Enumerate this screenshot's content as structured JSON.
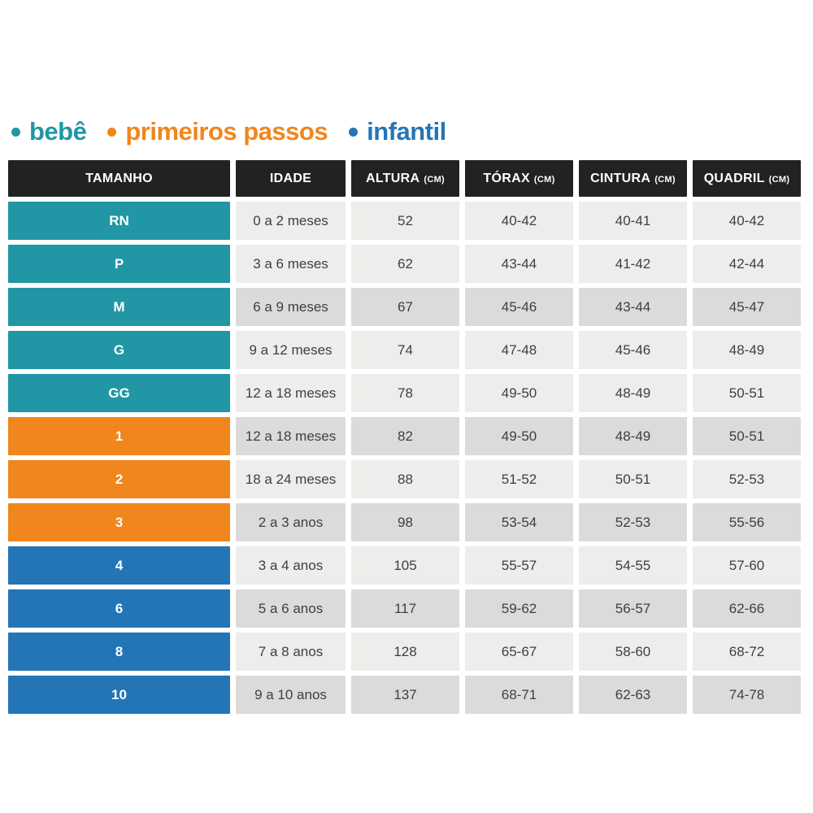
{
  "legend": {
    "items": [
      {
        "label": "bebê",
        "color": "#2196a5"
      },
      {
        "label": "primeiros passos",
        "color": "#f0861c"
      },
      {
        "label": "infantil",
        "color": "#2475b6"
      }
    ]
  },
  "chart_data": {
    "type": "table",
    "columns": [
      {
        "label": "TAMANHO",
        "unit": ""
      },
      {
        "label": "IDADE",
        "unit": ""
      },
      {
        "label": "ALTURA",
        "unit": "(CM)"
      },
      {
        "label": "TÓRAX",
        "unit": "(CM)"
      },
      {
        "label": "CINTURA",
        "unit": "(CM)"
      },
      {
        "label": "QUADRIL",
        "unit": "(CM)"
      }
    ],
    "rows": [
      {
        "group": "bebê",
        "size": "RN",
        "idade": "0 a 2 meses",
        "altura": "52",
        "torax": "40-42",
        "cintura": "40-41",
        "quadril": "40-42",
        "shaded": false
      },
      {
        "group": "bebê",
        "size": "P",
        "idade": "3 a 6 meses",
        "altura": "62",
        "torax": "43-44",
        "cintura": "41-42",
        "quadril": "42-44",
        "shaded": false
      },
      {
        "group": "bebê",
        "size": "M",
        "idade": "6 a 9 meses",
        "altura": "67",
        "torax": "45-46",
        "cintura": "43-44",
        "quadril": "45-47",
        "shaded": true
      },
      {
        "group": "bebê",
        "size": "G",
        "idade": "9 a 12 meses",
        "altura": "74",
        "torax": "47-48",
        "cintura": "45-46",
        "quadril": "48-49",
        "shaded": false
      },
      {
        "group": "bebê",
        "size": "GG",
        "idade": "12 a 18 meses",
        "altura": "78",
        "torax": "49-50",
        "cintura": "48-49",
        "quadril": "50-51",
        "shaded": false
      },
      {
        "group": "primeiros passos",
        "size": "1",
        "idade": "12 a 18 meses",
        "altura": "82",
        "torax": "49-50",
        "cintura": "48-49",
        "quadril": "50-51",
        "shaded": true
      },
      {
        "group": "primeiros passos",
        "size": "2",
        "idade": "18 a 24 meses",
        "altura": "88",
        "torax": "51-52",
        "cintura": "50-51",
        "quadril": "52-53",
        "shaded": false
      },
      {
        "group": "primeiros passos",
        "size": "3",
        "idade": "2 a 3 anos",
        "altura": "98",
        "torax": "53-54",
        "cintura": "52-53",
        "quadril": "55-56",
        "shaded": true
      },
      {
        "group": "infantil",
        "size": "4",
        "idade": "3 a 4 anos",
        "altura": "105",
        "torax": "55-57",
        "cintura": "54-55",
        "quadril": "57-60",
        "shaded": false
      },
      {
        "group": "infantil",
        "size": "6",
        "idade": "5 a 6 anos",
        "altura": "117",
        "torax": "59-62",
        "cintura": "56-57",
        "quadril": "62-66",
        "shaded": true
      },
      {
        "group": "infantil",
        "size": "8",
        "idade": "7 a 8 anos",
        "altura": "128",
        "torax": "65-67",
        "cintura": "58-60",
        "quadril": "68-72",
        "shaded": false
      },
      {
        "group": "infantil",
        "size": "10",
        "idade": "9 a 10 anos",
        "altura": "137",
        "torax": "68-71",
        "cintura": "62-63",
        "quadril": "74-78",
        "shaded": true
      }
    ]
  },
  "colors": {
    "page_bg": "#ffffff",
    "header_bg": "#222222",
    "header_text": "#ffffff",
    "size_text": "#ffffff",
    "row_bg_light": "#eeedeb",
    "row_bg_dark": "#dcdbd9",
    "cell_text": "#3f3f3f"
  }
}
